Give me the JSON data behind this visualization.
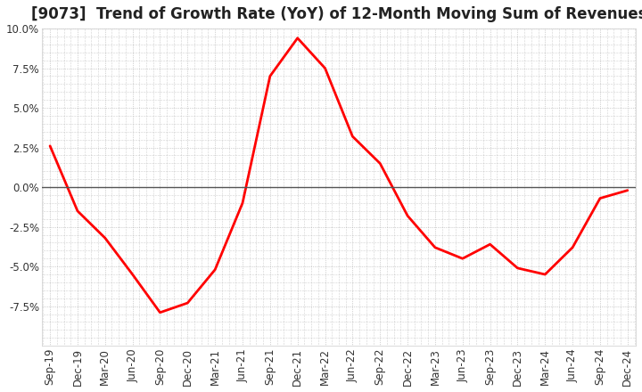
{
  "title": "[9073]  Trend of Growth Rate (YoY) of 12-Month Moving Sum of Revenues",
  "x_labels": [
    "Sep-19",
    "Dec-19",
    "Mar-20",
    "Jun-20",
    "Sep-20",
    "Dec-20",
    "Mar-21",
    "Jun-21",
    "Sep-21",
    "Dec-21",
    "Mar-22",
    "Jun-22",
    "Sep-22",
    "Dec-22",
    "Mar-23",
    "Jun-23",
    "Sep-23",
    "Dec-23",
    "Mar-24",
    "Jun-24",
    "Sep-24",
    "Dec-24"
  ],
  "y_values": [
    2.6,
    -1.5,
    -3.2,
    -5.5,
    -7.9,
    -7.3,
    -5.2,
    -1.0,
    7.0,
    9.4,
    7.5,
    3.2,
    1.5,
    -1.8,
    -3.8,
    -4.5,
    -3.6,
    -5.1,
    -5.5,
    -3.8,
    -0.7,
    -0.2
  ],
  "ylim": [
    -10.0,
    10.0
  ],
  "yticks": [
    10.0,
    7.5,
    5.0,
    2.5,
    0.0,
    -2.5,
    -5.0,
    -7.5
  ],
  "line_color": "#ff0000",
  "background_color": "#ffffff",
  "grid_color": "#aaaaaa",
  "zero_line_color": "#555555",
  "title_fontsize": 12,
  "tick_fontsize": 8.5
}
